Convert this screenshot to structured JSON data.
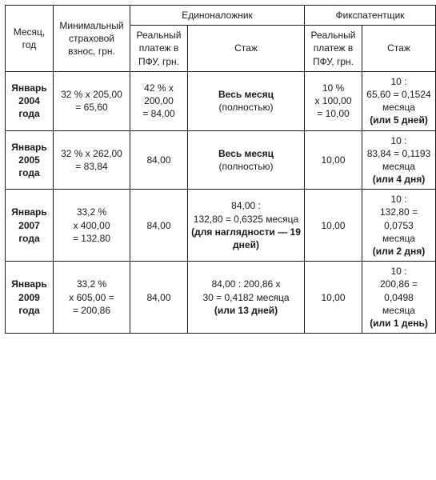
{
  "header": {
    "group1": "Единоналожник",
    "group2": "Фикспатентщик",
    "month_year": "Месяц, год",
    "min_contrib": "Минимальный страховой взнос, грн.",
    "real_pay": "Реальный платеж в ПФУ, грн.",
    "stazh": "Стаж"
  },
  "rows": [
    {
      "period_l1": "Январь",
      "period_l2": "2004",
      "period_l3": "года",
      "min_l1": "32 % х 205,00",
      "min_l2": "= 65,60",
      "pay1_l1": "42 % х",
      "pay1_l2": "200,00",
      "pay1_l3": "= 84,00",
      "stazh1_l1": "Весь месяц",
      "stazh1_l2": "(полностью)",
      "pay2_l1": "10 %",
      "pay2_l2": "х 100,00",
      "pay2_l3": "= 10,00",
      "stazh2_l1": "10 :",
      "stazh2_l2": "65,60 = 0,1524",
      "stazh2_l3": "месяца",
      "stazh2_l4": "(или 5 дней)"
    },
    {
      "period_l1": "Январь",
      "period_l2": "2005",
      "period_l3": "года",
      "min_l1": "32 % х 262,00",
      "min_l2": "= 83,84",
      "pay1_l1": "84,00",
      "stazh1_l1": "Весь месяц",
      "stazh1_l2": "(полностью)",
      "pay2_l1": "10,00",
      "stazh2_l1": "10 :",
      "stazh2_l2": "83,84 = 0,1193",
      "stazh2_l3": "месяца",
      "stazh2_l4": "(или 4 дня)"
    },
    {
      "period_l1": "Январь",
      "period_l2": "2007",
      "period_l3": "года",
      "min_l1": "33,2 %",
      "min_l2": "х 400,00",
      "min_l3": "= 132,80",
      "pay1_l1": "84,00",
      "stazh1_l1": "84,00 :",
      "stazh1_l2": "132,80 = 0,6325 месяца",
      "stazh1_l3": "(для наглядности — 19",
      "stazh1_l4": "дней)",
      "pay2_l1": "10,00",
      "stazh2_l1": "10 :",
      "stazh2_l2": "132,80 = 0,0753",
      "stazh2_l3": "месяца",
      "stazh2_l4": "(или 2 дня)"
    },
    {
      "period_l1": "Январь",
      "period_l2": "2009",
      "period_l3": "года",
      "min_l1": "33,2 %",
      "min_l2": "х 605,00 =",
      "min_l3": "= 200,86",
      "pay1_l1": "84,00",
      "stazh1_l1": "84,00 : 200,86 х",
      "stazh1_l2": "30 = 0,4182 месяца",
      "stazh1_l3": "(или 13 дней)",
      "pay2_l1": "10,00",
      "stazh2_l1": "10 :",
      "stazh2_l2": "200,86 = 0,0498",
      "stazh2_l3": "месяца",
      "stazh2_l4": "(или 1 день)"
    }
  ]
}
